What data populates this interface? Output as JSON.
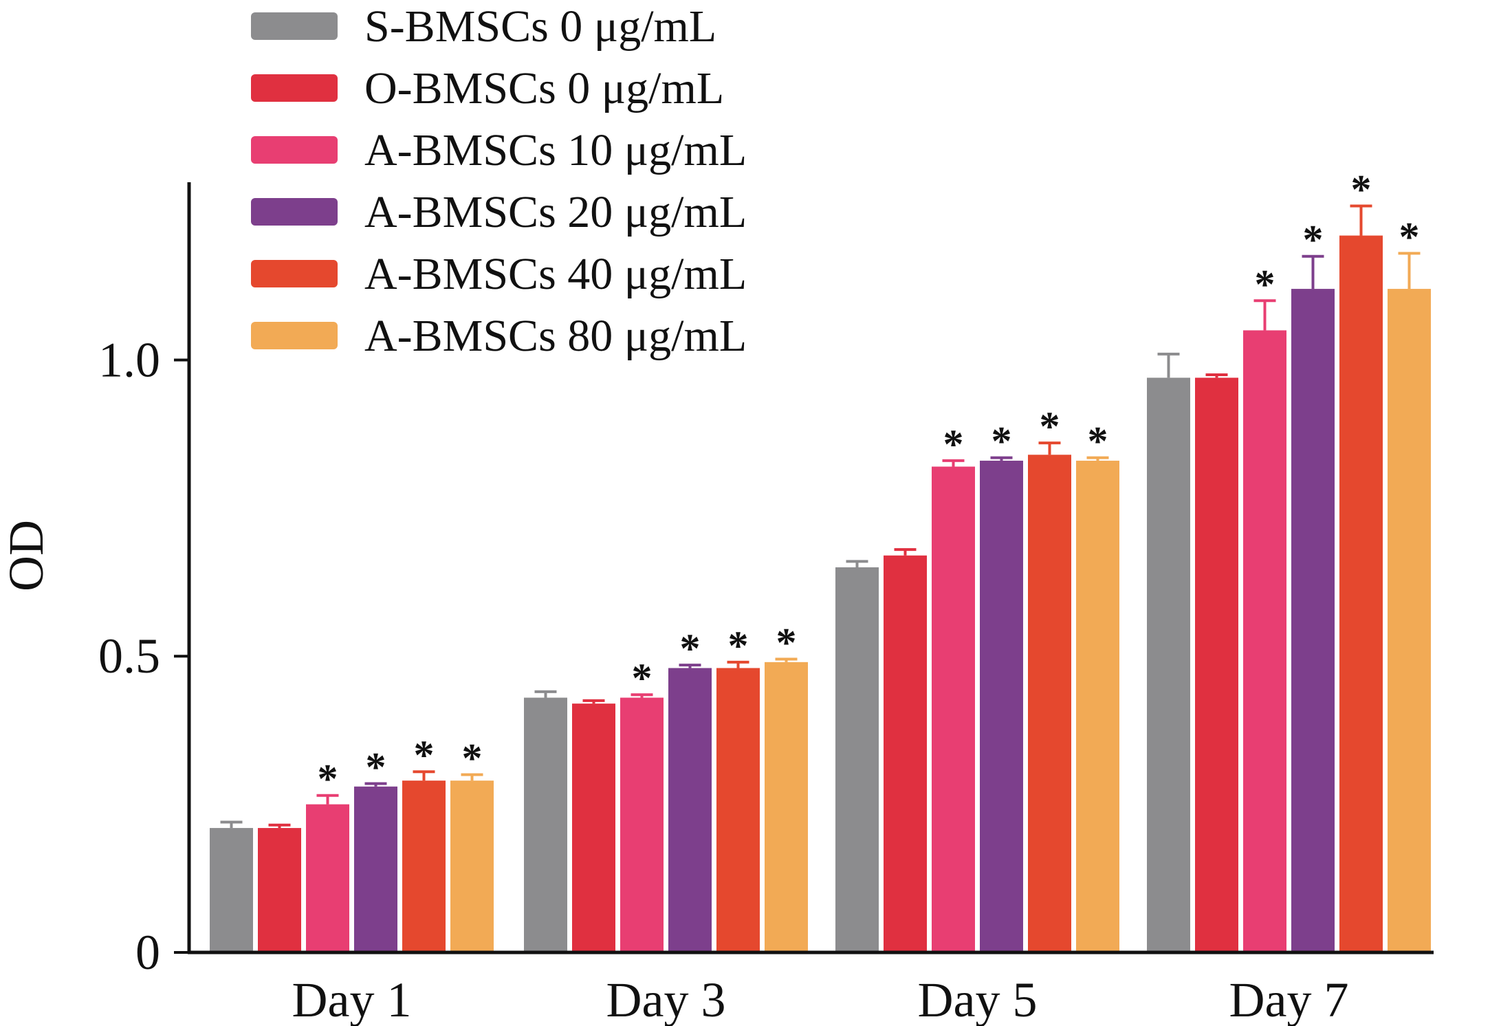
{
  "chart_data": {
    "type": "bar",
    "title": "",
    "xlabel": "",
    "ylabel": "OD",
    "ylim": [
      0,
      1.3
    ],
    "yticks": [
      {
        "value": 0,
        "label": "0"
      },
      {
        "value": 0.5,
        "label": "0.5"
      },
      {
        "value": 1.0,
        "label": "1.0"
      }
    ],
    "categories": [
      "Day 1",
      "Day 3",
      "Day 5",
      "Day 7"
    ],
    "legend_position": "top-left",
    "significance_marker": "*",
    "series": [
      {
        "name": "S-BMSCs 0 μg/mL",
        "color": "#8c8c8e",
        "values": [
          0.21,
          0.43,
          0.65,
          0.97
        ],
        "errors": [
          0.01,
          0.01,
          0.01,
          0.04
        ],
        "significant": [
          false,
          false,
          false,
          false
        ]
      },
      {
        "name": "O-BMSCs 0 μg/mL",
        "color": "#e03040",
        "values": [
          0.21,
          0.42,
          0.67,
          0.97
        ],
        "errors": [
          0.005,
          0.005,
          0.01,
          0.005
        ],
        "significant": [
          false,
          false,
          false,
          false
        ]
      },
      {
        "name": "A-BMSCs 10 μg/mL",
        "color": "#e83e72",
        "values": [
          0.25,
          0.43,
          0.82,
          1.05
        ],
        "errors": [
          0.015,
          0.005,
          0.01,
          0.05
        ],
        "significant": [
          true,
          true,
          true,
          true
        ]
      },
      {
        "name": "A-BMSCs 20 μg/mL",
        "color": "#7d3f8c",
        "values": [
          0.28,
          0.48,
          0.83,
          1.12
        ],
        "errors": [
          0.005,
          0.005,
          0.005,
          0.055
        ],
        "significant": [
          true,
          true,
          true,
          true
        ]
      },
      {
        "name": "A-BMSCs 40 μg/mL",
        "color": "#e5482e",
        "values": [
          0.29,
          0.48,
          0.84,
          1.21
        ],
        "errors": [
          0.015,
          0.01,
          0.02,
          0.05
        ],
        "significant": [
          true,
          true,
          true,
          true
        ]
      },
      {
        "name": "A-BMSCs 80 μg/mL",
        "color": "#f2aa55",
        "values": [
          0.29,
          0.49,
          0.83,
          1.12
        ],
        "errors": [
          0.01,
          0.005,
          0.005,
          0.06
        ],
        "significant": [
          true,
          true,
          true,
          true
        ]
      }
    ]
  }
}
